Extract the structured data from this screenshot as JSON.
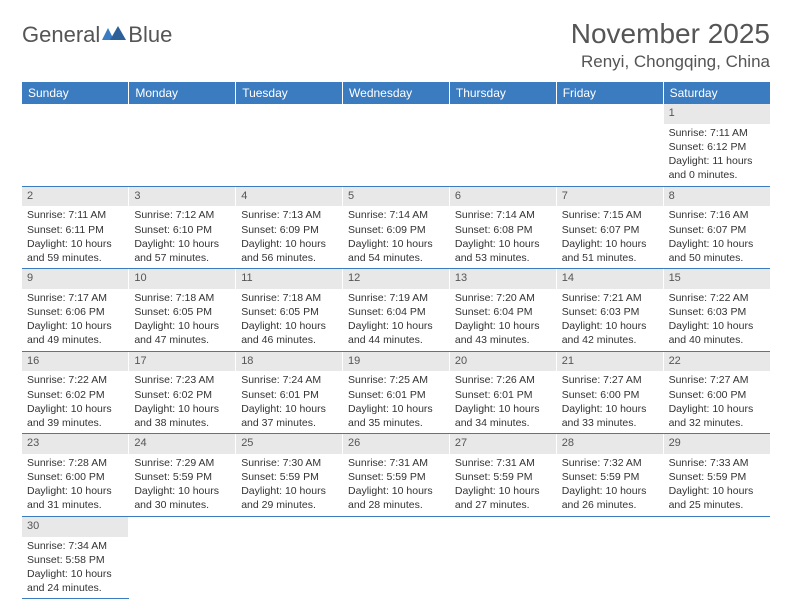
{
  "logo": {
    "word1": "General",
    "word2": "Blue"
  },
  "title": "November 2025",
  "location": "Renyi, Chongqing, China",
  "colors": {
    "header_bg": "#3b7bbf",
    "header_fg": "#ffffff",
    "daynum_bg": "#e8e8e8",
    "text": "#333333",
    "muted": "#555555"
  },
  "weekdays": [
    "Sunday",
    "Monday",
    "Tuesday",
    "Wednesday",
    "Thursday",
    "Friday",
    "Saturday"
  ],
  "calendar": {
    "type": "table",
    "rows": 6,
    "cols": 7,
    "first_weekday_index": 6,
    "days": [
      {
        "n": 1,
        "sunrise": "7:11 AM",
        "sunset": "6:12 PM",
        "daylight": "11 hours and 0 minutes."
      },
      {
        "n": 2,
        "sunrise": "7:11 AM",
        "sunset": "6:11 PM",
        "daylight": "10 hours and 59 minutes."
      },
      {
        "n": 3,
        "sunrise": "7:12 AM",
        "sunset": "6:10 PM",
        "daylight": "10 hours and 57 minutes."
      },
      {
        "n": 4,
        "sunrise": "7:13 AM",
        "sunset": "6:09 PM",
        "daylight": "10 hours and 56 minutes."
      },
      {
        "n": 5,
        "sunrise": "7:14 AM",
        "sunset": "6:09 PM",
        "daylight": "10 hours and 54 minutes."
      },
      {
        "n": 6,
        "sunrise": "7:14 AM",
        "sunset": "6:08 PM",
        "daylight": "10 hours and 53 minutes."
      },
      {
        "n": 7,
        "sunrise": "7:15 AM",
        "sunset": "6:07 PM",
        "daylight": "10 hours and 51 minutes."
      },
      {
        "n": 8,
        "sunrise": "7:16 AM",
        "sunset": "6:07 PM",
        "daylight": "10 hours and 50 minutes."
      },
      {
        "n": 9,
        "sunrise": "7:17 AM",
        "sunset": "6:06 PM",
        "daylight": "10 hours and 49 minutes."
      },
      {
        "n": 10,
        "sunrise": "7:18 AM",
        "sunset": "6:05 PM",
        "daylight": "10 hours and 47 minutes."
      },
      {
        "n": 11,
        "sunrise": "7:18 AM",
        "sunset": "6:05 PM",
        "daylight": "10 hours and 46 minutes."
      },
      {
        "n": 12,
        "sunrise": "7:19 AM",
        "sunset": "6:04 PM",
        "daylight": "10 hours and 44 minutes."
      },
      {
        "n": 13,
        "sunrise": "7:20 AM",
        "sunset": "6:04 PM",
        "daylight": "10 hours and 43 minutes."
      },
      {
        "n": 14,
        "sunrise": "7:21 AM",
        "sunset": "6:03 PM",
        "daylight": "10 hours and 42 minutes."
      },
      {
        "n": 15,
        "sunrise": "7:22 AM",
        "sunset": "6:03 PM",
        "daylight": "10 hours and 40 minutes."
      },
      {
        "n": 16,
        "sunrise": "7:22 AM",
        "sunset": "6:02 PM",
        "daylight": "10 hours and 39 minutes."
      },
      {
        "n": 17,
        "sunrise": "7:23 AM",
        "sunset": "6:02 PM",
        "daylight": "10 hours and 38 minutes."
      },
      {
        "n": 18,
        "sunrise": "7:24 AM",
        "sunset": "6:01 PM",
        "daylight": "10 hours and 37 minutes."
      },
      {
        "n": 19,
        "sunrise": "7:25 AM",
        "sunset": "6:01 PM",
        "daylight": "10 hours and 35 minutes."
      },
      {
        "n": 20,
        "sunrise": "7:26 AM",
        "sunset": "6:01 PM",
        "daylight": "10 hours and 34 minutes."
      },
      {
        "n": 21,
        "sunrise": "7:27 AM",
        "sunset": "6:00 PM",
        "daylight": "10 hours and 33 minutes."
      },
      {
        "n": 22,
        "sunrise": "7:27 AM",
        "sunset": "6:00 PM",
        "daylight": "10 hours and 32 minutes."
      },
      {
        "n": 23,
        "sunrise": "7:28 AM",
        "sunset": "6:00 PM",
        "daylight": "10 hours and 31 minutes."
      },
      {
        "n": 24,
        "sunrise": "7:29 AM",
        "sunset": "5:59 PM",
        "daylight": "10 hours and 30 minutes."
      },
      {
        "n": 25,
        "sunrise": "7:30 AM",
        "sunset": "5:59 PM",
        "daylight": "10 hours and 29 minutes."
      },
      {
        "n": 26,
        "sunrise": "7:31 AM",
        "sunset": "5:59 PM",
        "daylight": "10 hours and 28 minutes."
      },
      {
        "n": 27,
        "sunrise": "7:31 AM",
        "sunset": "5:59 PM",
        "daylight": "10 hours and 27 minutes."
      },
      {
        "n": 28,
        "sunrise": "7:32 AM",
        "sunset": "5:59 PM",
        "daylight": "10 hours and 26 minutes."
      },
      {
        "n": 29,
        "sunrise": "7:33 AM",
        "sunset": "5:59 PM",
        "daylight": "10 hours and 25 minutes."
      },
      {
        "n": 30,
        "sunrise": "7:34 AM",
        "sunset": "5:58 PM",
        "daylight": "10 hours and 24 minutes."
      }
    ]
  },
  "labels": {
    "sunrise": "Sunrise: ",
    "sunset": "Sunset: ",
    "daylight": "Daylight: "
  }
}
